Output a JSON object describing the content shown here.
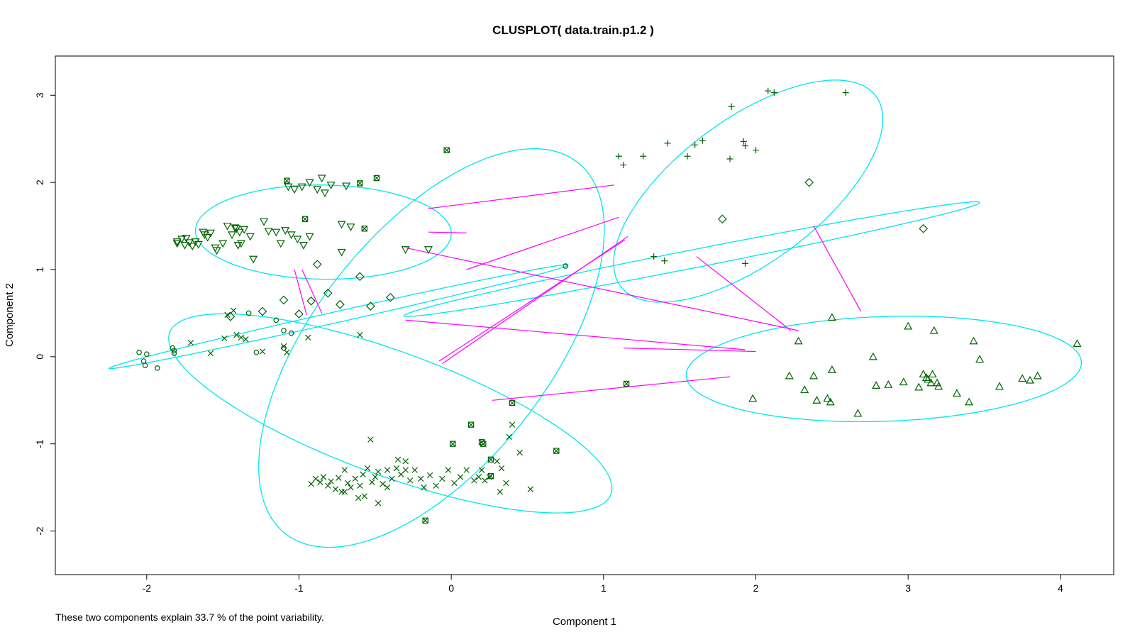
{
  "chart_data": {
    "type": "scatter",
    "title": "CLUSPLOT( data.train.p1.2 )",
    "xlabel": "Component 1",
    "ylabel": "Component 2",
    "xlim": [
      -2.6,
      4.35
    ],
    "ylim": [
      -2.5,
      3.45
    ],
    "xticks": [
      -2,
      -1,
      0,
      1,
      2,
      3,
      4
    ],
    "yticks": [
      -2,
      -1,
      0,
      1,
      2,
      3
    ],
    "xtick_labels": [
      "-2",
      "-1",
      "0",
      "1",
      "2",
      "3",
      "4"
    ],
    "ytick_labels": [
      "-2",
      "-1",
      "0",
      "1",
      "2",
      "3"
    ],
    "grid": false,
    "footnote": "These two components explain 33.7 % of the point variability.",
    "colors": {
      "points": "#006400",
      "ellipse": "#00e5ee",
      "segment": "#ff00ff",
      "frame": "#000000"
    },
    "clusters": [
      {
        "symbol": "circle",
        "ellipse": {
          "center": [
            -0.74,
            0.46
          ],
          "semi_major": 1.62,
          "semi_minor": 0.06,
          "angle_deg": 21.5
        },
        "points": [
          [
            -2.05,
            0.05
          ],
          [
            -2.0,
            0.03
          ],
          [
            -2.02,
            -0.05
          ],
          [
            -2.01,
            -0.1
          ],
          [
            -1.93,
            -0.13
          ],
          [
            -1.83,
            0.1
          ],
          [
            -1.82,
            0.04
          ],
          [
            -1.82,
            0.07
          ],
          [
            -1.33,
            0.5
          ],
          [
            -1.28,
            0.05
          ],
          [
            -1.15,
            0.42
          ],
          [
            -1.1,
            0.3
          ],
          [
            -1.1,
            0.1
          ],
          [
            -1.05,
            0.27
          ],
          [
            0.75,
            1.04
          ]
        ]
      },
      {
        "symbol": "diamond",
        "ellipse": {
          "center": [
            1.58,
            1.12
          ],
          "semi_major": 2.0,
          "semi_minor": 0.1,
          "angle_deg": 19
        },
        "points": [
          [
            -1.45,
            0.46
          ],
          [
            -1.24,
            0.52
          ],
          [
            -1.1,
            0.65
          ],
          [
            -1.0,
            0.49
          ],
          [
            -0.92,
            0.64
          ],
          [
            -0.88,
            1.06
          ],
          [
            -0.81,
            0.73
          ],
          [
            -0.73,
            0.6
          ],
          [
            -0.6,
            0.92
          ],
          [
            -0.53,
            0.58
          ],
          [
            -0.4,
            0.68
          ],
          [
            1.78,
            1.58
          ],
          [
            2.35,
            2.0
          ],
          [
            3.1,
            1.47
          ]
        ]
      },
      {
        "symbol": "triangle-down",
        "ellipse": {
          "center": [
            -0.84,
            1.43
          ],
          "semi_major": 0.84,
          "semi_minor": 0.54,
          "angle_deg": -2
        },
        "points": [
          [
            -1.8,
            1.32
          ],
          [
            -1.8,
            1.3
          ],
          [
            -1.77,
            1.35
          ],
          [
            -1.75,
            1.28
          ],
          [
            -1.74,
            1.36
          ],
          [
            -1.72,
            1.31
          ],
          [
            -1.7,
            1.27
          ],
          [
            -1.68,
            1.32
          ],
          [
            -1.66,
            1.29
          ],
          [
            -1.62,
            1.4
          ],
          [
            -1.63,
            1.43
          ],
          [
            -1.6,
            1.37
          ],
          [
            -1.58,
            1.42
          ],
          [
            -1.55,
            1.25
          ],
          [
            -1.54,
            1.22
          ],
          [
            -1.5,
            1.3
          ],
          [
            -1.47,
            1.5
          ],
          [
            -1.44,
            1.4
          ],
          [
            -1.42,
            1.48
          ],
          [
            -1.41,
            1.47
          ],
          [
            -1.39,
            1.43
          ],
          [
            -1.36,
            1.46
          ],
          [
            -1.32,
            1.38
          ],
          [
            -1.38,
            1.3
          ],
          [
            -1.4,
            1.28
          ],
          [
            -1.3,
            1.12
          ],
          [
            -1.23,
            1.55
          ],
          [
            -1.2,
            1.44
          ],
          [
            -1.15,
            1.43
          ],
          [
            -1.12,
            1.3
          ],
          [
            -1.09,
            1.45
          ],
          [
            -1.05,
            1.4
          ],
          [
            -1.01,
            1.35
          ],
          [
            -0.97,
            1.28
          ],
          [
            -0.93,
            1.38
          ],
          [
            -1.07,
            1.95
          ],
          [
            -1.03,
            1.92
          ],
          [
            -0.98,
            1.95
          ],
          [
            -0.93,
            2.0
          ],
          [
            -0.88,
            1.92
          ],
          [
            -0.85,
            2.05
          ],
          [
            -0.83,
            1.88
          ],
          [
            -0.79,
            1.97
          ],
          [
            -0.69,
            1.96
          ],
          [
            -0.72,
            1.52
          ],
          [
            -0.66,
            1.49
          ],
          [
            -0.72,
            1.2
          ],
          [
            -0.3,
            1.23
          ],
          [
            -0.15,
            1.23
          ]
        ]
      },
      {
        "symbol": "plus",
        "ellipse": {
          "center": [
            1.95,
            1.9
          ],
          "semi_major": 1.43,
          "semi_minor": 0.6,
          "angle_deg": 60
        },
        "points": [
          [
            1.1,
            2.3
          ],
          [
            1.13,
            2.2
          ],
          [
            1.26,
            2.3
          ],
          [
            1.42,
            2.45
          ],
          [
            1.55,
            2.3
          ],
          [
            1.6,
            2.43
          ],
          [
            1.65,
            2.48
          ],
          [
            1.84,
            2.87
          ],
          [
            1.83,
            2.27
          ],
          [
            1.92,
            2.47
          ],
          [
            1.93,
            2.42
          ],
          [
            2.0,
            2.37
          ],
          [
            2.08,
            3.05
          ],
          [
            2.12,
            3.03
          ],
          [
            2.59,
            3.03
          ],
          [
            1.33,
            1.15
          ],
          [
            1.4,
            1.1
          ],
          [
            1.93,
            1.07
          ]
        ]
      },
      {
        "symbol": "triangle",
        "ellipse": {
          "center": [
            2.84,
            -0.14
          ],
          "semi_major": 1.3,
          "semi_minor": 0.6,
          "angle_deg": 4
        },
        "points": [
          [
            1.98,
            -0.48
          ],
          [
            2.22,
            -0.22
          ],
          [
            2.28,
            0.18
          ],
          [
            2.32,
            -0.38
          ],
          [
            2.38,
            -0.22
          ],
          [
            2.4,
            -0.5
          ],
          [
            2.47,
            -0.48
          ],
          [
            2.49,
            -0.52
          ],
          [
            2.5,
            0.45
          ],
          [
            2.5,
            -0.15
          ],
          [
            2.67,
            -0.65
          ],
          [
            2.77,
            0.0
          ],
          [
            2.79,
            -0.33
          ],
          [
            2.87,
            -0.32
          ],
          [
            2.97,
            -0.29
          ],
          [
            3.0,
            0.35
          ],
          [
            3.07,
            -0.35
          ],
          [
            3.1,
            -0.2
          ],
          [
            3.12,
            -0.24
          ],
          [
            3.13,
            -0.26
          ],
          [
            3.15,
            -0.3
          ],
          [
            3.16,
            -0.2
          ],
          [
            3.17,
            0.3
          ],
          [
            3.19,
            -0.3
          ],
          [
            3.2,
            -0.34
          ],
          [
            3.32,
            -0.42
          ],
          [
            3.4,
            -0.52
          ],
          [
            3.43,
            0.18
          ],
          [
            3.47,
            -0.03
          ],
          [
            3.6,
            -0.34
          ],
          [
            3.75,
            -0.25
          ],
          [
            3.8,
            -0.27
          ],
          [
            3.85,
            -0.22
          ],
          [
            4.11,
            0.15
          ]
        ]
      },
      {
        "symbol": "cross",
        "ellipse": {
          "center": [
            -0.4,
            -0.65
          ],
          "semi_major": 1.74,
          "semi_minor": 0.63,
          "angle_deg": -36
        },
        "points": [
          [
            -1.71,
            0.16
          ],
          [
            -1.58,
            0.04
          ],
          [
            -1.49,
            0.21
          ],
          [
            -1.47,
            0.48
          ],
          [
            -1.43,
            0.53
          ],
          [
            -1.41,
            0.25
          ],
          [
            -1.38,
            0.22
          ],
          [
            -1.35,
            0.2
          ],
          [
            -1.24,
            0.06
          ],
          [
            -1.1,
            0.12
          ],
          [
            -1.08,
            0.05
          ],
          [
            -0.94,
            0.22
          ],
          [
            -0.6,
            0.25
          ],
          [
            -0.92,
            -1.46
          ],
          [
            -0.89,
            -1.4
          ],
          [
            -0.86,
            -1.44
          ],
          [
            -0.84,
            -1.38
          ],
          [
            -0.81,
            -1.48
          ],
          [
            -0.79,
            -1.43
          ],
          [
            -0.76,
            -1.52
          ],
          [
            -0.74,
            -1.39
          ],
          [
            -0.72,
            -1.55
          ],
          [
            -0.7,
            -1.3
          ],
          [
            -0.68,
            -1.45
          ],
          [
            -0.66,
            -1.5
          ],
          [
            -0.63,
            -1.4
          ],
          [
            -0.6,
            -1.48
          ],
          [
            -0.58,
            -1.35
          ],
          [
            -0.55,
            -1.28
          ],
          [
            -0.52,
            -1.44
          ],
          [
            -0.5,
            -1.38
          ],
          [
            -0.48,
            -1.32
          ],
          [
            -0.45,
            -1.46
          ],
          [
            -0.42,
            -1.3
          ],
          [
            -0.39,
            -1.4
          ],
          [
            -0.36,
            -1.28
          ],
          [
            -0.33,
            -1.35
          ],
          [
            -0.3,
            -1.3
          ],
          [
            -0.27,
            -1.42
          ],
          [
            -0.24,
            -1.3
          ],
          [
            -0.2,
            -1.4
          ],
          [
            -0.18,
            -1.5
          ],
          [
            -0.14,
            -1.36
          ],
          [
            -0.1,
            -1.48
          ],
          [
            -0.06,
            -1.4
          ],
          [
            -0.02,
            -1.3
          ],
          [
            0.02,
            -1.45
          ],
          [
            0.06,
            -1.38
          ],
          [
            0.1,
            -1.3
          ],
          [
            0.15,
            -1.42
          ],
          [
            0.2,
            -1.3
          ],
          [
            0.25,
            -1.38
          ],
          [
            0.3,
            -1.2
          ],
          [
            0.33,
            -1.28
          ],
          [
            0.36,
            -1.45
          ],
          [
            0.4,
            -0.78
          ],
          [
            0.45,
            -1.1
          ],
          [
            0.52,
            -1.52
          ],
          [
            -0.53,
            -0.95
          ],
          [
            -0.57,
            -1.6
          ],
          [
            -0.61,
            -1.62
          ],
          [
            -0.48,
            -1.68
          ],
          [
            -0.7,
            -1.55
          ],
          [
            -0.42,
            -1.5
          ],
          [
            -0.35,
            -1.18
          ],
          [
            -0.3,
            -1.2
          ],
          [
            0.18,
            -1.38
          ],
          [
            0.22,
            -1.42
          ],
          [
            0.32,
            -1.55
          ],
          [
            0.38,
            -0.92
          ]
        ]
      },
      {
        "symbol": "box-x",
        "ellipse": {
          "center": [
            -0.13,
            0.1
          ],
          "semi_major": 2.4,
          "semi_minor": 0.87,
          "angle_deg": 71
        },
        "points": [
          [
            -1.08,
            2.02
          ],
          [
            -0.96,
            1.58
          ],
          [
            -0.49,
            2.05
          ],
          [
            -0.6,
            1.99
          ],
          [
            -0.57,
            1.47
          ],
          [
            -0.03,
            2.37
          ],
          [
            0.01,
            -1.0
          ],
          [
            0.13,
            -0.78
          ],
          [
            0.2,
            -0.98
          ],
          [
            0.21,
            -1.0
          ],
          [
            0.26,
            -1.18
          ],
          [
            0.26,
            -1.37
          ],
          [
            0.4,
            -0.53
          ],
          [
            0.69,
            -1.08
          ],
          [
            1.15,
            -0.31
          ],
          [
            -0.17,
            -1.88
          ]
        ]
      }
    ],
    "distance_segments": [
      [
        [
          -0.15,
          1.7
        ],
        [
          1.07,
          1.97
        ]
      ],
      [
        [
          -0.15,
          1.43
        ],
        [
          0.1,
          1.42
        ]
      ],
      [
        [
          -0.3,
          1.25
        ],
        [
          2.28,
          0.3
        ]
      ],
      [
        [
          -1.03,
          1.0
        ],
        [
          -0.95,
          0.48
        ]
      ],
      [
        [
          -0.98,
          1.0
        ],
        [
          -0.85,
          0.5
        ]
      ],
      [
        [
          0.1,
          1.0
        ],
        [
          1.1,
          1.6
        ]
      ],
      [
        [
          -0.08,
          -0.05
        ],
        [
          1.14,
          1.34
        ]
      ],
      [
        [
          -0.06,
          -0.08
        ],
        [
          1.16,
          1.38
        ]
      ],
      [
        [
          -0.3,
          0.42
        ],
        [
          1.93,
          0.08
        ]
      ],
      [
        [
          1.13,
          0.1
        ],
        [
          2.0,
          0.06
        ]
      ],
      [
        [
          0.27,
          -0.5
        ],
        [
          1.83,
          -0.23
        ]
      ],
      [
        [
          1.61,
          1.15
        ],
        [
          2.23,
          0.3
        ]
      ],
      [
        [
          2.38,
          1.5
        ],
        [
          2.69,
          0.52
        ]
      ]
    ]
  }
}
